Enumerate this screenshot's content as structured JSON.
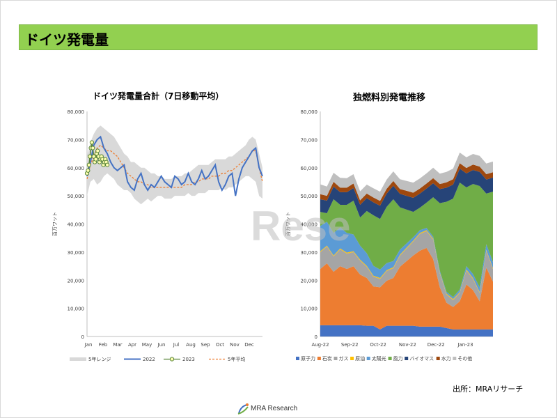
{
  "page": {
    "title": "ドイツ発電量",
    "source_label": "出所：MRAリサーチ",
    "logo_text": "MRA Research",
    "watermark_text": "Rese"
  },
  "colors": {
    "title_bar": "#92d050",
    "range": "#d9d9d9",
    "y2022": "#4472c4",
    "y2023": "#548235",
    "avg": "#ed7d31"
  },
  "chart_data": [
    {
      "type": "line",
      "title": "ドイツ発電量合計（7日移動平均）",
      "ylabel": "百万ワット",
      "xlabel": "",
      "ylim": [
        0,
        80000
      ],
      "yticks": [
        0,
        10000,
        20000,
        30000,
        40000,
        50000,
        60000,
        70000,
        80000
      ],
      "ytick_labels": [
        "0",
        "10,000",
        "20,000",
        "30,000",
        "40,000",
        "50,000",
        "60,000",
        "70,000",
        "80,000"
      ],
      "categories": [
        "Jan",
        "Feb",
        "Mar",
        "Apr",
        "May",
        "Jun",
        "Jul",
        "Aug",
        "Sep",
        "Oct",
        "Nov",
        "Dec"
      ],
      "x_days": [
        0,
        7,
        14,
        21,
        28,
        35,
        42,
        49,
        56,
        63,
        70,
        77,
        84,
        91,
        98,
        105,
        112,
        119,
        126,
        133,
        140,
        147,
        154,
        161,
        168,
        175,
        182,
        189,
        196,
        203,
        210,
        217,
        224,
        231,
        238,
        245,
        252,
        259,
        266,
        273,
        280,
        287,
        294,
        301,
        308,
        315,
        322,
        329,
        336,
        343,
        350,
        357,
        364
      ],
      "grid": false,
      "legend_position": "bottom",
      "range_band": {
        "name": "5年レンジ",
        "low": [
          50000,
          55000,
          56000,
          54000,
          55000,
          57000,
          58000,
          57000,
          56000,
          54000,
          53000,
          52000,
          52000,
          51000,
          49000,
          48000,
          47000,
          48000,
          49000,
          48000,
          49000,
          50000,
          50000,
          49000,
          49000,
          49000,
          50000,
          50000,
          50000,
          50000,
          51000,
          50000,
          50000,
          51000,
          51000,
          51000,
          52000,
          52000,
          52000,
          52000,
          53000,
          52000,
          53000,
          53000,
          54000,
          55000,
          56000,
          57000,
          57000,
          56000,
          55000,
          50000,
          49000
        ],
        "high": [
          64000,
          69000,
          72000,
          74000,
          75000,
          74000,
          73000,
          72000,
          71000,
          69000,
          67000,
          65000,
          64000,
          62000,
          62000,
          61000,
          60000,
          60000,
          59000,
          58000,
          58000,
          57000,
          57000,
          56000,
          56000,
          56000,
          57000,
          57000,
          57000,
          58000,
          58000,
          59000,
          60000,
          61000,
          61000,
          61000,
          61000,
          62000,
          63000,
          63000,
          63000,
          63000,
          64000,
          64000,
          65000,
          66000,
          67000,
          68000,
          70000,
          71000,
          70000,
          65000,
          60000
        ]
      },
      "series": [
        {
          "name": "2022",
          "x": [
            0,
            7,
            14,
            21,
            28,
            35,
            42,
            49,
            56,
            63,
            70,
            77,
            84,
            91,
            98,
            105,
            112,
            119,
            126,
            133,
            140,
            147,
            154,
            161,
            168,
            175,
            182,
            189,
            196,
            203,
            210,
            217,
            224,
            231,
            238,
            245,
            252,
            259,
            266,
            273,
            280,
            287,
            294,
            301,
            308,
            315,
            322,
            329,
            336,
            343,
            350,
            357,
            364
          ],
          "y": [
            57000,
            62000,
            68000,
            70000,
            71000,
            67000,
            65000,
            62000,
            60000,
            59000,
            60000,
            61000,
            55000,
            53000,
            52000,
            56000,
            58000,
            54000,
            52000,
            54000,
            53000,
            55000,
            57000,
            55000,
            54000,
            53000,
            57000,
            56000,
            54000,
            55000,
            58000,
            55000,
            54000,
            56000,
            59000,
            56000,
            57000,
            59000,
            61000,
            55000,
            52000,
            54000,
            57000,
            58000,
            50000,
            56000,
            60000,
            62000,
            64000,
            66000,
            67000,
            60000,
            57000
          ]
        },
        {
          "name": "2023",
          "x": [
            0,
            2,
            4,
            6,
            8,
            10,
            12,
            14,
            16,
            18,
            20,
            22,
            24,
            26,
            28,
            30,
            32,
            34,
            36,
            38,
            40,
            42
          ],
          "y": [
            58000,
            59000,
            61000,
            64000,
            67000,
            69000,
            67000,
            64000,
            62000,
            63000,
            65000,
            66000,
            64000,
            62000,
            63000,
            64000,
            63000,
            61000,
            62000,
            63000,
            62000,
            61000
          ]
        },
        {
          "name": "5年平均",
          "x": [
            0,
            7,
            14,
            21,
            28,
            35,
            42,
            49,
            56,
            63,
            70,
            77,
            84,
            91,
            98,
            105,
            112,
            119,
            126,
            133,
            140,
            147,
            154,
            161,
            168,
            175,
            182,
            189,
            196,
            203,
            210,
            217,
            224,
            231,
            238,
            245,
            252,
            259,
            266,
            273,
            280,
            287,
            294,
            301,
            308,
            315,
            322,
            329,
            336,
            343,
            350,
            357,
            364
          ],
          "y": [
            56000,
            61000,
            64000,
            67000,
            68000,
            67000,
            66000,
            66000,
            65000,
            64000,
            62000,
            60000,
            58000,
            57000,
            56000,
            55000,
            55000,
            54000,
            54000,
            53000,
            53000,
            53000,
            53000,
            53000,
            53000,
            53000,
            53000,
            53000,
            53000,
            54000,
            54000,
            54000,
            55000,
            55000,
            56000,
            56000,
            56000,
            57000,
            57000,
            57000,
            58000,
            58000,
            59000,
            59000,
            60000,
            61000,
            62000,
            63000,
            64000,
            66000,
            66000,
            60000,
            55000
          ]
        }
      ]
    },
    {
      "type": "area",
      "title": "独燃料別発電推移",
      "ylabel": "百万ワット",
      "xlabel": "",
      "ylim": [
        0,
        80000
      ],
      "yticks": [
        0,
        10000,
        20000,
        30000,
        40000,
        50000,
        60000,
        70000,
        80000
      ],
      "ytick_labels": [
        "0",
        "10,000",
        "20,000",
        "30,000",
        "40,000",
        "50,000",
        "60,000",
        "70,000",
        "80,000"
      ],
      "categories": [
        "Aug-22",
        "Sep-22",
        "Oct-22",
        "Nov-22",
        "Dec-22",
        "Jan-23"
      ],
      "category_positions": [
        0,
        31,
        61,
        92,
        122,
        153
      ],
      "x": [
        0,
        7,
        14,
        21,
        28,
        35,
        42,
        49,
        56,
        63,
        70,
        77,
        84,
        91,
        98,
        105,
        112,
        119,
        126,
        133,
        140,
        147,
        154,
        161,
        168,
        175,
        182
      ],
      "grid": false,
      "legend_position": "bottom",
      "series": [
        {
          "name": "原子力",
          "color": "#4472c4",
          "values": [
            4000,
            4000,
            4000,
            4000,
            4000,
            4000,
            4000,
            3800,
            3800,
            2500,
            3800,
            3800,
            3800,
            3800,
            3800,
            3500,
            3500,
            3500,
            3500,
            3000,
            2500,
            2500,
            2500,
            2500,
            2500,
            2500,
            2500
          ]
        },
        {
          "name": "石炭",
          "color": "#ed7d31",
          "values": [
            20000,
            22000,
            19000,
            21000,
            20000,
            21000,
            18000,
            17000,
            14000,
            15000,
            16000,
            17000,
            21000,
            23000,
            25000,
            27000,
            28000,
            24000,
            14000,
            9000,
            8000,
            10000,
            16000,
            14000,
            10000,
            22000,
            17000
          ]
        },
        {
          "name": "ガス",
          "color": "#a5a5a5",
          "values": [
            6000,
            6000,
            5500,
            6000,
            5500,
            5000,
            5000,
            4000,
            3500,
            3000,
            3500,
            3500,
            4000,
            4500,
            5000,
            6000,
            6000,
            7000,
            5000,
            3000,
            2500,
            3000,
            5000,
            4000,
            3000,
            6000,
            4500
          ]
        },
        {
          "name": "原油",
          "color": "#ffc000",
          "values": [
            300,
            300,
            300,
            300,
            300,
            300,
            300,
            300,
            300,
            300,
            300,
            300,
            300,
            300,
            300,
            300,
            300,
            300,
            300,
            300,
            300,
            300,
            300,
            300,
            300,
            300,
            300
          ]
        },
        {
          "name": "太陽光",
          "color": "#5b9bd5",
          "values": [
            9000,
            8500,
            8000,
            7500,
            7000,
            6000,
            5000,
            4500,
            3500,
            3000,
            2500,
            2200,
            1800,
            1500,
            1200,
            1000,
            800,
            700,
            600,
            600,
            700,
            900,
            1200,
            1400,
            1700,
            2000,
            2200
          ]
        },
        {
          "name": "風力",
          "color": "#70ad47",
          "values": [
            5000,
            3000,
            12000,
            8000,
            10000,
            12000,
            10000,
            15000,
            18000,
            18000,
            20000,
            22000,
            15000,
            12000,
            9000,
            8000,
            9000,
            14000,
            24000,
            32000,
            35000,
            38000,
            28000,
            32000,
            36000,
            18000,
            25000
          ]
        },
        {
          "name": "バイオマス",
          "color": "#264478",
          "values": [
            4500,
            4500,
            4500,
            4500,
            4500,
            4500,
            4500,
            4600,
            4600,
            4700,
            4700,
            4800,
            4800,
            4900,
            5000,
            5000,
            5000,
            5000,
            5000,
            5000,
            5000,
            5000,
            5000,
            5000,
            5000,
            5000,
            5000
          ]
        },
        {
          "name": "水力",
          "color": "#9e480e",
          "values": [
            1800,
            1700,
            1700,
            1600,
            1600,
            1600,
            1600,
            1600,
            1700,
            1700,
            1700,
            1700,
            1700,
            1800,
            1800,
            1800,
            1800,
            1800,
            1800,
            1900,
            1900,
            1900,
            1900,
            1900,
            1900,
            1900,
            1900
          ]
        },
        {
          "name": "その他",
          "color": "#bfbfbf",
          "values": [
            3500,
            3300,
            3200,
            3500,
            3400,
            3300,
            3200,
            3200,
            3300,
            3300,
            3300,
            3400,
            3500,
            3500,
            3600,
            3600,
            3600,
            3700,
            3700,
            3700,
            3800,
            3800,
            3800,
            3800,
            3800,
            3800,
            3800
          ]
        }
      ]
    }
  ]
}
